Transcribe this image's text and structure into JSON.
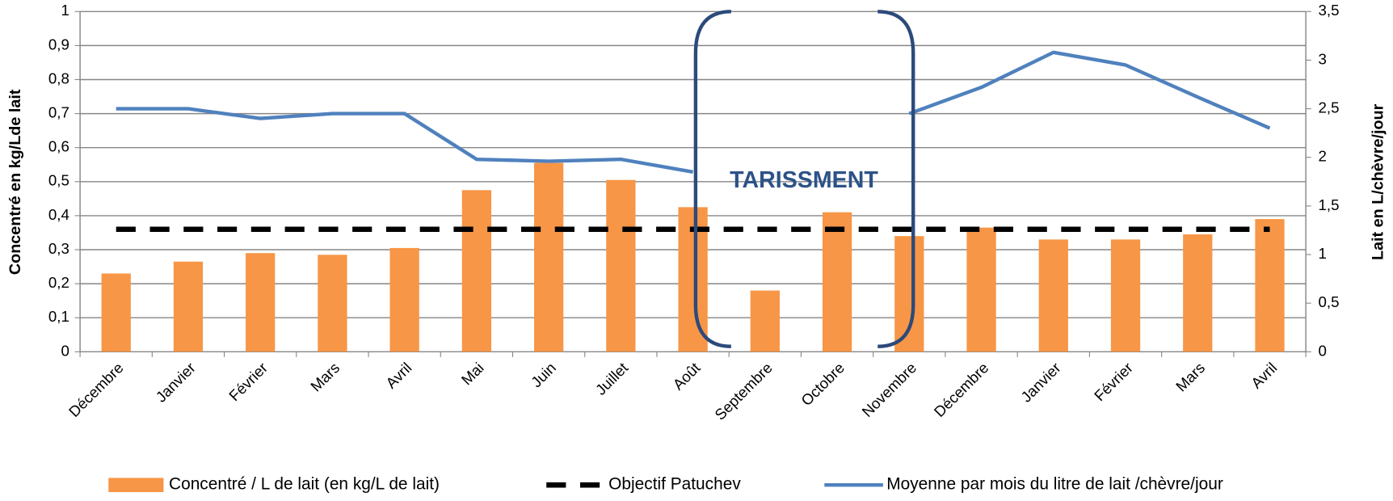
{
  "chart_data": {
    "type": "bar",
    "categories": [
      "Décembre",
      "Janvier",
      "Février",
      "Mars",
      "Avril",
      "Mai",
      "Juin",
      "Juillet",
      "Août",
      "Septembre",
      "Octobre",
      "Novembre",
      "Décembre",
      "Janvier",
      "Février",
      "Mars",
      "Avril"
    ],
    "series": [
      {
        "name": "Concentré / L de lait (en kg/L de lait)",
        "type": "bar",
        "color": "#f79646",
        "values": [
          0.23,
          0.265,
          0.29,
          0.285,
          0.305,
          0.475,
          0.555,
          0.505,
          0.425,
          0.18,
          0.41,
          0.34,
          0.365,
          0.33,
          0.33,
          0.345,
          0.39
        ]
      },
      {
        "name": "Objectif Patuchev",
        "type": "dashed-line",
        "color": "#000000",
        "values": [
          0.36,
          0.36,
          0.36,
          0.36,
          0.36,
          0.36,
          0.36,
          0.36,
          0.36,
          0.36,
          0.36,
          0.36,
          0.36,
          0.36,
          0.36,
          0.36,
          0.36
        ]
      },
      {
        "name": "Moyenne par mois du litre de lait /chèvre/jour",
        "type": "line",
        "axis": "y2",
        "color": "#4f81bd",
        "values": [
          2.5,
          2.5,
          2.4,
          2.45,
          2.45,
          1.98,
          1.96,
          1.98,
          1.85,
          null,
          null,
          2.45,
          2.72,
          3.08,
          2.95,
          2.62,
          2.3
        ]
      }
    ],
    "ylabel": "Concentré en kg/Lde lait",
    "y2label": "Lait en L/chèvre/jour",
    "annotation": "TARISSMENT",
    "ylim": [
      0,
      1
    ],
    "yticks": [
      0,
      {
        "value": 0.1,
        "label": "0,1"
      },
      {
        "value": 0.2,
        "label": "0,2"
      },
      {
        "value": 0.3,
        "label": "0,3"
      },
      {
        "value": 0.4,
        "label": "0,4"
      },
      {
        "value": 0.5,
        "label": "0,5"
      },
      {
        "value": 0.6,
        "label": "0,6"
      },
      {
        "value": 0.7,
        "label": "0,7"
      },
      {
        "value": 0.8,
        "label": "0,8"
      },
      {
        "value": 0.9,
        "label": "0,9"
      },
      1
    ],
    "y2lim": [
      0,
      3.5
    ],
    "y2ticks": [
      0,
      {
        "value": 0.5,
        "label": "0,5"
      },
      1,
      {
        "value": 1.5,
        "label": "1,5"
      },
      2,
      {
        "value": 2.5,
        "label": "2,5"
      },
      3,
      {
        "value": 3.5,
        "label": "3,5"
      }
    ],
    "grid": true,
    "legend": "bottom"
  }
}
